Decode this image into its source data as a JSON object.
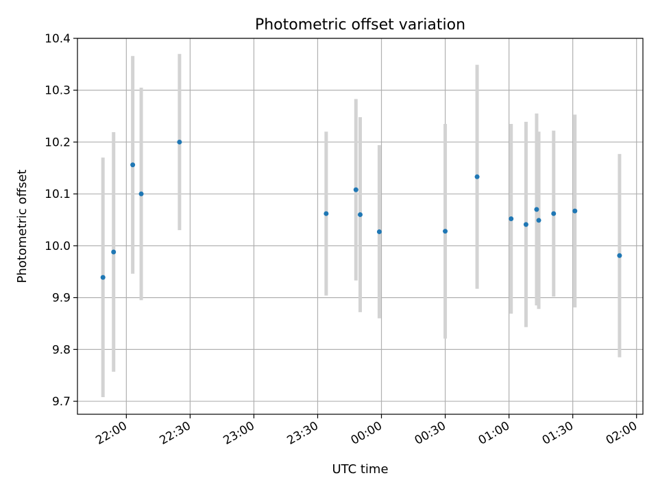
{
  "chart_data": {
    "type": "scatter",
    "title": "Photometric offset variation",
    "xlabel": "UTC time",
    "ylabel": "Photometric offset",
    "grid": true,
    "x_ticks": [
      "22:00",
      "22:30",
      "23:00",
      "23:30",
      "00:00",
      "00:30",
      "01:00",
      "01:30",
      "02:00"
    ],
    "y_ticks": [
      "9.7",
      "9.8",
      "9.9",
      "10.0",
      "10.1",
      "10.2",
      "10.3",
      "10.4"
    ],
    "ylim": [
      9.675,
      10.4
    ],
    "xlim": [
      "21:37",
      "02:03"
    ],
    "colors": {
      "point": "#1f77b4",
      "errorbar": "#d3d3d3",
      "grid": "#b0b0b0"
    },
    "series": [
      {
        "x": [
          "21:49",
          "21:54",
          "22:03",
          "22:07",
          "22:25",
          "23:34",
          "23:48",
          "23:50",
          "23:59",
          "00:30",
          "00:45",
          "01:01",
          "01:08",
          "01:13",
          "01:14",
          "01:21",
          "01:31",
          "01:52"
        ],
        "y": [
          9.939,
          9.988,
          10.156,
          10.1,
          10.2,
          10.062,
          10.108,
          10.06,
          10.027,
          10.028,
          10.133,
          10.052,
          10.041,
          10.07,
          10.049,
          10.062,
          10.067,
          9.981
        ],
        "yerr": [
          0.231,
          0.231,
          0.21,
          0.205,
          0.17,
          0.158,
          0.175,
          0.188,
          0.167,
          0.207,
          0.216,
          0.183,
          0.198,
          0.185,
          0.171,
          0.16,
          0.186,
          0.196
        ]
      }
    ]
  }
}
